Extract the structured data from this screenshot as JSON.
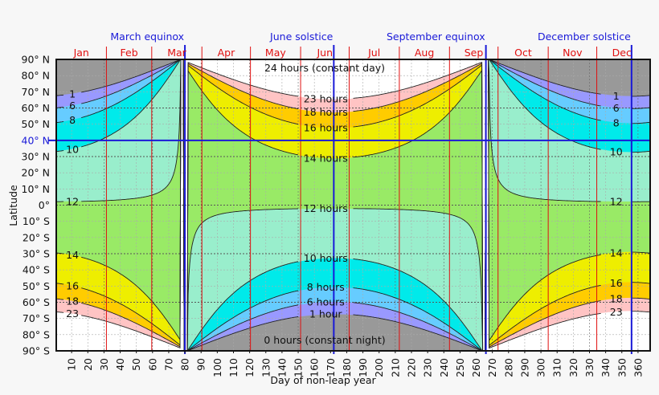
{
  "chart_data": {
    "type": "contour",
    "xlabel": "Day of non-leap year",
    "ylabel": "Latitude",
    "xlim": [
      0.5,
      367.5
    ],
    "ylim": [
      -90,
      90
    ],
    "grid": true,
    "x_ticks": [
      10,
      20,
      30,
      40,
      50,
      60,
      70,
      80,
      90,
      100,
      110,
      120,
      130,
      140,
      150,
      160,
      170,
      180,
      190,
      200,
      210,
      220,
      230,
      240,
      250,
      260,
      270,
      280,
      290,
      300,
      310,
      320,
      330,
      340,
      350,
      360
    ],
    "y_ticks": [
      {
        "value": 90,
        "label": "90° N"
      },
      {
        "value": 80,
        "label": "80° N"
      },
      {
        "value": 70,
        "label": "70° N"
      },
      {
        "value": 60,
        "label": "60° N"
      },
      {
        "value": 50,
        "label": "50° N"
      },
      {
        "value": 40,
        "label": "40° N"
      },
      {
        "value": 30,
        "label": "30° N"
      },
      {
        "value": 20,
        "label": "20° N"
      },
      {
        "value": 10,
        "label": "10° N"
      },
      {
        "value": 0,
        "label": "0°"
      },
      {
        "value": -10,
        "label": "10° S"
      },
      {
        "value": -20,
        "label": "20° S"
      },
      {
        "value": -30,
        "label": "30° S"
      },
      {
        "value": -40,
        "label": "40° S"
      },
      {
        "value": -50,
        "label": "50° S"
      },
      {
        "value": -60,
        "label": "60° S"
      },
      {
        "value": -70,
        "label": "70° S"
      },
      {
        "value": -80,
        "label": "80° S"
      },
      {
        "value": -90,
        "label": "90° S"
      }
    ],
    "highlight_latitude": {
      "value": 40,
      "color": "#1a1ad8"
    },
    "months": [
      {
        "label": "Jan",
        "start": 1,
        "end": 31
      },
      {
        "label": "Feb",
        "start": 32,
        "end": 59
      },
      {
        "label": "Mar",
        "start": 60,
        "end": 90
      },
      {
        "label": "Apr",
        "start": 91,
        "end": 120
      },
      {
        "label": "May",
        "start": 121,
        "end": 151
      },
      {
        "label": "Jun",
        "start": 152,
        "end": 181
      },
      {
        "label": "Jul",
        "start": 182,
        "end": 212
      },
      {
        "label": "Aug",
        "start": 213,
        "end": 243
      },
      {
        "label": "Sep",
        "start": 244,
        "end": 273
      },
      {
        "label": "Oct",
        "start": 274,
        "end": 304
      },
      {
        "label": "Nov",
        "start": 305,
        "end": 334
      },
      {
        "label": "Dec",
        "start": 335,
        "end": 365
      }
    ],
    "month_line_color": "#e01010",
    "events": [
      {
        "label": "March equinox",
        "day": 80
      },
      {
        "label": "June solstice",
        "day": 172
      },
      {
        "label": "September equinox",
        "day": 266
      },
      {
        "label": "December solstice",
        "day": 356
      }
    ],
    "event_line_color": "#1a1ad8",
    "base_band": {
      "label": "0 hours (constant night)",
      "color": "#999999"
    },
    "top_band_label": "24 hours (constant day)",
    "levels": [
      {
        "hours": 1,
        "short": "1",
        "long": "1 hour",
        "color_above": "#9999ff"
      },
      {
        "hours": 6,
        "short": "6",
        "long": "6 hours",
        "color_above": "#66ccff"
      },
      {
        "hours": 8,
        "short": "8",
        "long": "8 hours",
        "color_above": "#00eaea"
      },
      {
        "hours": 10,
        "short": "10",
        "long": "10 hours",
        "color_above": "#99eecc"
      },
      {
        "hours": 12,
        "short": "12",
        "long": "12 hours",
        "color_above": "#99ea66"
      },
      {
        "hours": 14,
        "short": "14",
        "long": "14 hours",
        "color_above": "#eeee00"
      },
      {
        "hours": 16,
        "short": "16",
        "long": "16 hours",
        "color_above": "#ffcc00"
      },
      {
        "hours": 18,
        "short": "18",
        "long": "18 hours",
        "color_above": "#ffc4c4"
      },
      {
        "hours": 23,
        "short": "23",
        "long": "23 hours",
        "color_above": "#ffffff"
      }
    ]
  }
}
